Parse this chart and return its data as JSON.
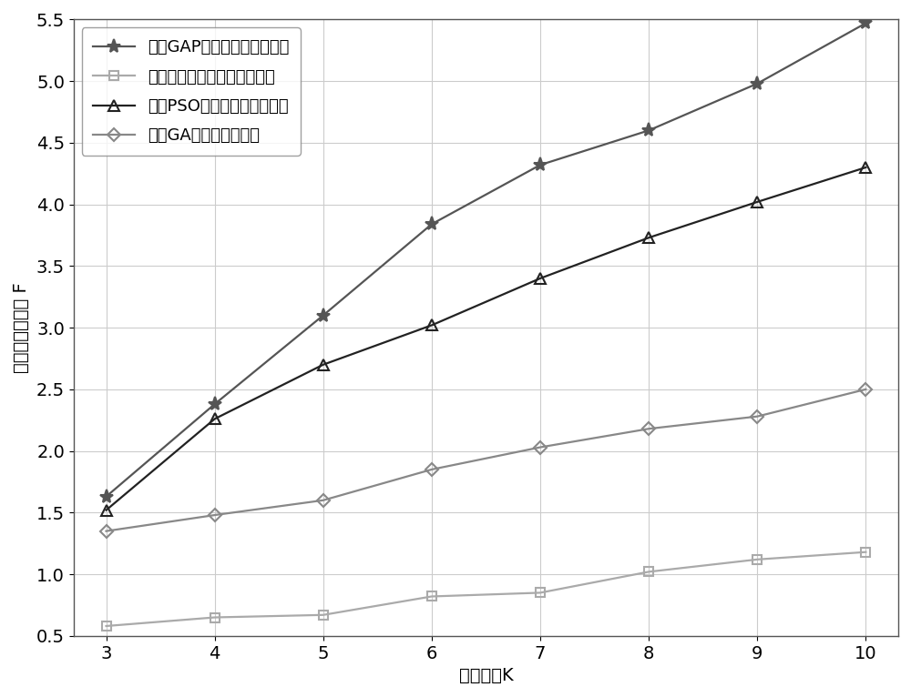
{
  "x": [
    3,
    4,
    5,
    6,
    7,
    8,
    9,
    10
  ],
  "series": [
    {
      "label": "基于GAP方法的波束跳变技术",
      "values": [
        1.63,
        2.38,
        3.1,
        3.84,
        4.32,
        4.6,
        4.98,
        5.47
      ],
      "color": "#555555",
      "marker": "*",
      "markersize": 11,
      "linewidth": 1.6,
      "open": false
    },
    {
      "label": "基于随机选择的波束跳变技术",
      "values": [
        0.58,
        0.65,
        0.67,
        0.82,
        0.85,
        1.02,
        1.12,
        1.18
      ],
      "color": "#aaaaaa",
      "marker": "s",
      "markersize": 7,
      "linewidth": 1.6,
      "open": true
    },
    {
      "label": "基于PSO算法的波束跳变技术",
      "values": [
        1.52,
        2.26,
        2.7,
        3.02,
        3.4,
        3.73,
        4.02,
        4.3
      ],
      "color": "#222222",
      "marker": "^",
      "markersize": 9,
      "linewidth": 1.6,
      "open": true
    },
    {
      "label": "基于GA的波束跳变技术",
      "values": [
        1.35,
        1.48,
        1.6,
        1.85,
        2.03,
        2.18,
        2.28,
        2.5
      ],
      "color": "#888888",
      "marker": "D",
      "markersize": 7,
      "linewidth": 1.6,
      "open": true
    }
  ],
  "xlabel": "卫星波束K",
  "ylabel": "服务满意度总和 F",
  "xlim": [
    2.7,
    10.3
  ],
  "ylim": [
    0.5,
    5.5
  ],
  "xticks": [
    3,
    4,
    5,
    6,
    7,
    8,
    9,
    10
  ],
  "yticks": [
    0.5,
    1.0,
    1.5,
    2.0,
    2.5,
    3.0,
    3.5,
    4.0,
    4.5,
    5.0,
    5.5
  ],
  "grid": true,
  "background_color": "#ffffff",
  "legend_loc": "upper left",
  "fontsize": 14
}
